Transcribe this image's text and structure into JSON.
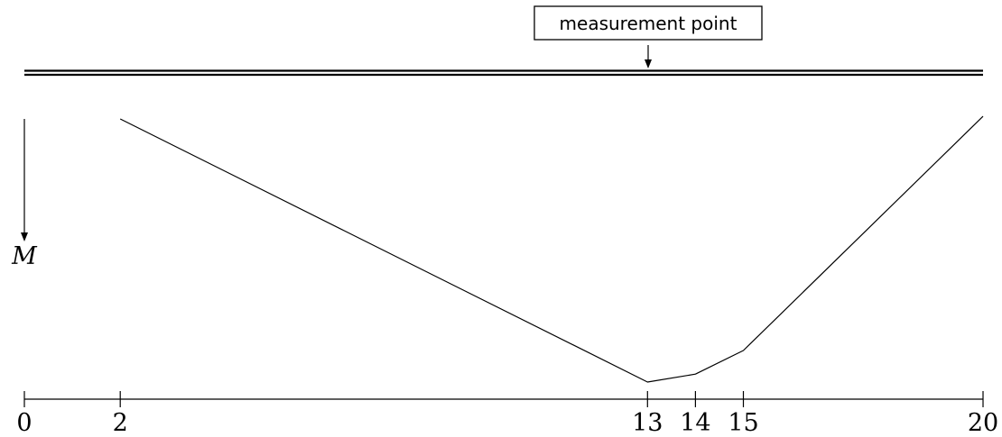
{
  "callout": {
    "label": "measurement point",
    "position": 13
  },
  "moment_axis": {
    "label": "M"
  },
  "x_axis": {
    "min": 0,
    "max": 20,
    "ticks": [
      {
        "value": 0,
        "label": "0"
      },
      {
        "value": 2,
        "label": "2"
      },
      {
        "value": 13,
        "label": "13"
      },
      {
        "value": 14,
        "label": "14"
      },
      {
        "value": 15,
        "label": "15"
      },
      {
        "value": 20,
        "label": "20"
      }
    ]
  },
  "chart_data": {
    "type": "line",
    "series": [
      {
        "x": [
          2,
          13,
          14,
          15,
          20
        ],
        "y": [
          0.0,
          1.0,
          0.97,
          0.88,
          -0.01
        ]
      }
    ],
    "xlim": [
      0,
      20
    ]
  }
}
